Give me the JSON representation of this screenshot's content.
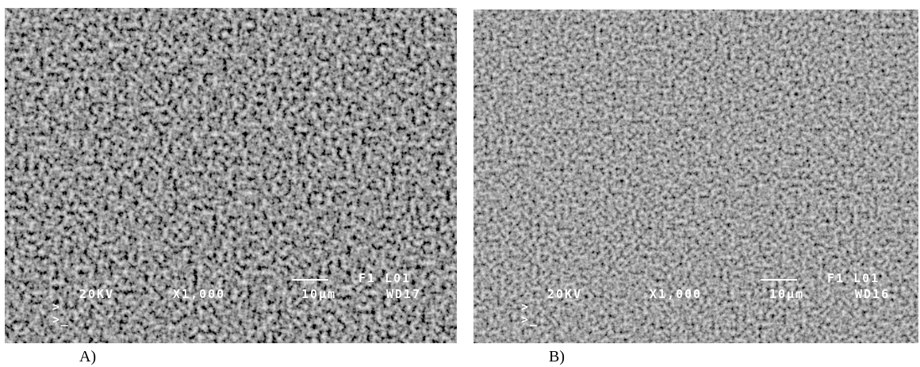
{
  "panels": [
    {
      "label": "A)",
      "voltage": "20KV",
      "magnification": "X1,000",
      "scale": "10μm",
      "code": "F1 L01",
      "working_distance": "WD17",
      "prompt_1": ">",
      "prompt_2": ">_"
    },
    {
      "label": "B)",
      "voltage": "20KV",
      "magnification": "X1,000",
      "scale": "10μm",
      "code": "F1 L01",
      "working_distance": "WD16",
      "prompt_1": ">",
      "prompt_2": ">_"
    }
  ]
}
